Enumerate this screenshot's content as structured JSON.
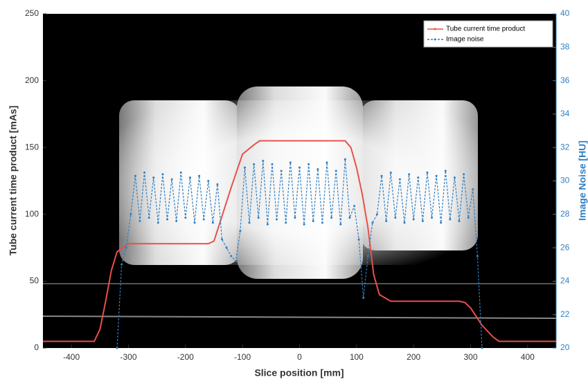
{
  "chart_data": {
    "type": "line",
    "xlabel": "Slice position [mm]",
    "ylabel": "Tube current time product [mAs]",
    "y2label": "Image Noise [HU]",
    "xlim": [
      -450,
      450
    ],
    "xticks": [
      -400,
      -300,
      -200,
      -100,
      0,
      100,
      200,
      300,
      400
    ],
    "ylim": [
      0,
      250
    ],
    "yticks": [
      0,
      50,
      100,
      150,
      200,
      250
    ],
    "y2lim": [
      20,
      40
    ],
    "y2ticks": [
      20,
      22,
      24,
      26,
      28,
      30,
      32,
      34,
      36,
      38,
      40
    ],
    "legend": "upper right",
    "series": [
      {
        "name": "Tube current time product",
        "color": "#e8504a",
        "axis": "y",
        "x": [
          -450,
          -360,
          -350,
          -340,
          -330,
          -320,
          -300,
          -200,
          -160,
          -150,
          -120,
          -100,
          -80,
          -70,
          0,
          80,
          90,
          100,
          110,
          120,
          130,
          140,
          160,
          280,
          290,
          300,
          320,
          340,
          350,
          450
        ],
        "values": [
          5,
          5,
          14,
          35,
          58,
          72,
          78,
          78,
          78,
          80,
          120,
          145,
          152,
          155,
          155,
          155,
          150,
          135,
          115,
          90,
          55,
          40,
          35,
          35,
          34,
          30,
          17,
          8,
          5,
          5
        ]
      },
      {
        "name": "Image noise",
        "color": "#2f7fc1",
        "axis": "y2",
        "x": [
          -320,
          -312,
          -304,
          -296,
          -288,
          -280,
          -272,
          -264,
          -256,
          -248,
          -240,
          -232,
          -224,
          -216,
          -208,
          -200,
          -192,
          -184,
          -176,
          -168,
          -160,
          -152,
          -144,
          -136,
          -128,
          -120,
          -112,
          -104,
          -96,
          -88,
          -80,
          -72,
          -64,
          -56,
          -48,
          -40,
          -32,
          -24,
          -16,
          -8,
          0,
          8,
          16,
          24,
          32,
          40,
          48,
          56,
          64,
          72,
          80,
          88,
          96,
          104,
          112,
          120,
          128,
          136,
          144,
          152,
          160,
          168,
          176,
          184,
          192,
          200,
          208,
          216,
          224,
          232,
          240,
          248,
          256,
          264,
          272,
          280,
          288,
          296,
          304,
          312,
          320
        ],
        "values": [
          20,
          25,
          26,
          28,
          30.3,
          27.6,
          30.5,
          27.8,
          30.2,
          27.5,
          30.4,
          27.7,
          30.1,
          27.6,
          30.5,
          27.8,
          30.2,
          27.5,
          30.3,
          27.7,
          30.0,
          27.5,
          29.8,
          26.5,
          26.0,
          25.5,
          25.2,
          27.0,
          30.8,
          27.5,
          31.0,
          27.8,
          31.2,
          27.4,
          31.0,
          27.7,
          30.6,
          27.5,
          31.1,
          27.8,
          30.8,
          27.4,
          31.0,
          27.6,
          30.7,
          27.5,
          31.1,
          27.8,
          30.6,
          27.4,
          31.3,
          27.8,
          28.5,
          26.5,
          23.0,
          25.5,
          27.5,
          28.0,
          30.3,
          27.6,
          30.5,
          27.8,
          30.1,
          27.5,
          30.4,
          27.7,
          30.2,
          27.6,
          30.5,
          27.8,
          30.3,
          27.5,
          30.6,
          27.7,
          30.2,
          27.6,
          30.4,
          27.8,
          29.5,
          25.5,
          20
        ]
      }
    ]
  }
}
